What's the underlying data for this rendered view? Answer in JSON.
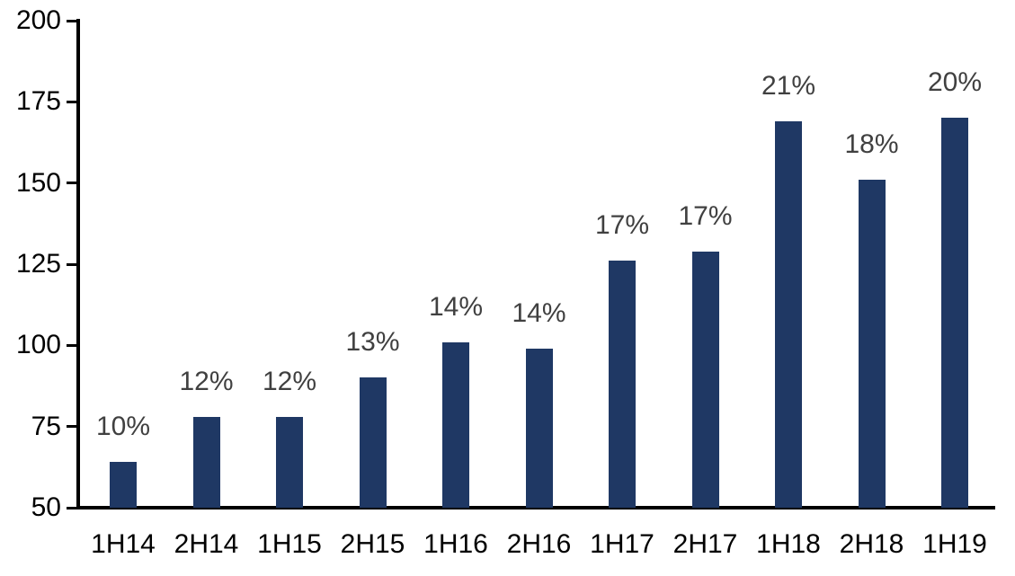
{
  "chart_data": {
    "type": "bar",
    "title": "",
    "xlabel": "",
    "ylabel": "",
    "categories": [
      "1H14",
      "2H14",
      "1H15",
      "2H15",
      "1H16",
      "2H16",
      "1H17",
      "2H17",
      "1H18",
      "2H18",
      "1H19"
    ],
    "values": [
      64,
      78,
      78,
      90,
      101,
      99,
      126,
      129,
      169,
      151,
      170
    ],
    "data_labels": [
      "10%",
      "12%",
      "12%",
      "13%",
      "14%",
      "14%",
      "17%",
      "17%",
      "21%",
      "18%",
      "20%"
    ],
    "ylim": [
      50,
      200
    ],
    "yticks": [
      50,
      75,
      100,
      125,
      150,
      175,
      200
    ],
    "ytick_labels": [
      "50",
      "75",
      "100",
      "125",
      "150",
      "175",
      "200"
    ],
    "grid": false,
    "legend": false,
    "colors": {
      "bar_fill": "#1F3864",
      "data_label_text": "#404040",
      "axis_line": "#000000",
      "tick_label_text": "#000000",
      "background": "#ffffff"
    }
  }
}
